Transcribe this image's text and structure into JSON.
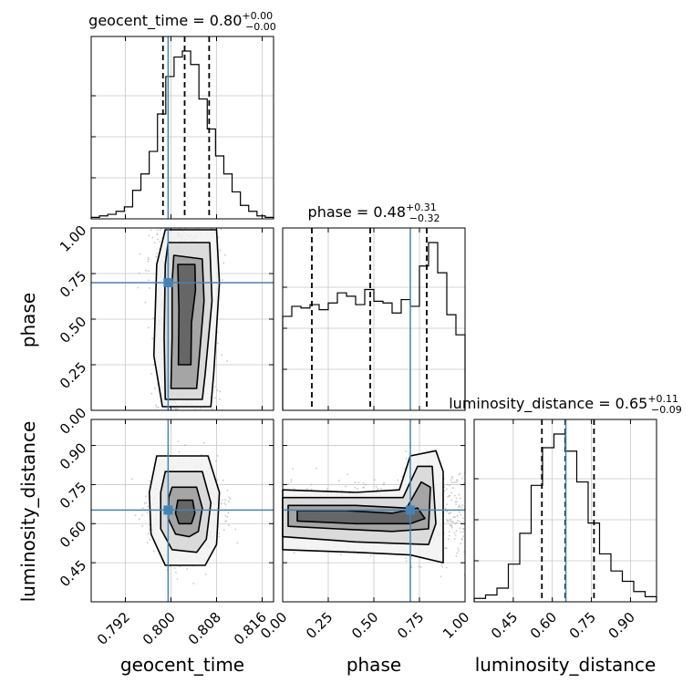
{
  "chart_data": {
    "type": "corner",
    "parameters": [
      {
        "name": "geocent_time",
        "axis_label": "geocent_time",
        "range": [
          0.786,
          0.818
        ],
        "ticks": [
          0.792,
          0.8,
          0.808,
          0.816
        ],
        "tick_labels": [
          "0.792",
          "0.800",
          "0.808",
          "0.816"
        ],
        "truth": 0.7995,
        "median": 0.8024,
        "lower": 0.7986,
        "upper": 0.8067
      },
      {
        "name": "phase",
        "axis_label": "phase",
        "range": [
          0.0,
          1.0
        ],
        "ticks": [
          0.0,
          0.25,
          0.5,
          0.75,
          1.0
        ],
        "tick_labels": [
          "0.00",
          "0.25",
          "0.50",
          "0.75",
          "1.00"
        ],
        "truth": 0.7,
        "median": 0.48,
        "lower": 0.16,
        "upper": 0.79
      },
      {
        "name": "luminosity_distance",
        "axis_label": "luminosity_distance",
        "range": [
          0.3,
          1.0
        ],
        "ticks": [
          0.45,
          0.6,
          0.75,
          0.9
        ],
        "tick_labels": [
          "0.45",
          "0.60",
          "0.75",
          "0.90"
        ],
        "truth": 0.652,
        "median": 0.65,
        "lower": 0.56,
        "upper": 0.76
      }
    ],
    "titles": [
      {
        "param": "geocent_time",
        "text": "geocent_time = 0.80",
        "sup": "+0.00",
        "sub": "−0.00"
      },
      {
        "param": "phase",
        "text": "phase = 0.48",
        "sup": "+0.31",
        "sub": "−0.32"
      },
      {
        "param": "luminosity_distance",
        "text": "luminosity_distance = 0.65",
        "sup": "+0.11",
        "sub": "−0.09"
      }
    ],
    "histograms": {
      "geocent_time": {
        "edges": [
          0.786,
          0.818
        ],
        "counts": [
          1,
          2,
          3,
          5,
          8,
          19,
          30,
          45,
          70,
          95,
          108,
          112,
          103,
          80,
          60,
          42,
          30,
          18,
          9,
          5,
          2,
          1
        ]
      },
      "phase": {
        "edges": [
          0.0,
          1.0
        ],
        "counts": [
          56,
          62,
          61,
          63,
          60,
          64,
          70,
          68,
          63,
          72,
          65,
          64,
          58,
          66,
          62,
          86,
          100,
          82,
          57,
          45
        ]
      },
      "luminosity_distance": {
        "edges": [
          0.3,
          1.0
        ],
        "counts": [
          2,
          4,
          8,
          22,
          40,
          68,
          90,
          98,
          88,
          70,
          46,
          28,
          18,
          12,
          6,
          3
        ]
      }
    },
    "grid": true,
    "truth_color": "#4682b4",
    "contour_color": "#000000"
  }
}
